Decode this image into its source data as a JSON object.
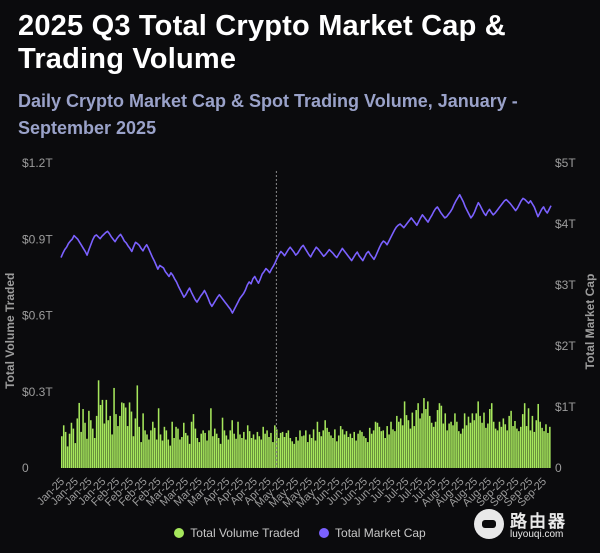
{
  "title": "2025 Q3 Total Crypto Market Cap & Trading Volume",
  "subtitle": "Daily Crypto Market Cap & Spot Trading Volume, January - September 2025",
  "colors": {
    "volume": "#a6e75c",
    "market_cap": "#7b61ff",
    "background": "#0b0b0d",
    "axis_text": "#9c9c9c"
  },
  "chart_data": {
    "type": "bar",
    "title": "2025 Q3 Total Crypto Market Cap & Trading Volume",
    "xlabel": "",
    "ylabel": "Total Volume Traded",
    "y2label": "Total Market Cap",
    "ylim": [
      0,
      1.2
    ],
    "y2lim": [
      0,
      5
    ],
    "y_ticks": [
      "0",
      "$0.3T",
      "$0.6T",
      "$0.9T",
      "$1.2T"
    ],
    "y2_ticks": [
      "0",
      "$1T",
      "$2T",
      "$3T",
      "$4T",
      "$5T"
    ],
    "grid": false,
    "legend_position": "bottom",
    "x_tick_labels": [
      "Jan-25",
      "Jan-25",
      "Jan-25",
      "Jan-25",
      "Feb-25",
      "Feb-25",
      "Feb-25",
      "Feb-25",
      "Mar-25",
      "Mar-25",
      "Mar-25",
      "Mar-25",
      "Apr-25",
      "Apr-25",
      "Apr-25",
      "Apr-25",
      "May-25",
      "May-25",
      "May-25",
      "May-25",
      "Jun-25",
      "Jun-25",
      "Jun-25",
      "Jun-25",
      "Jul-25",
      "Jul-25",
      "Jul-25",
      "Jul-25",
      "Aug-25",
      "Aug-25",
      "Aug-25",
      "Aug-25",
      "Sep-25",
      "Sep-25",
      "Sep-25",
      "Sep-25"
    ],
    "series": [
      {
        "name": "Total Volume Traded",
        "type": "bar",
        "axis": "left",
        "values": [
          0.125,
          0.168,
          0.142,
          0.085,
          0.135,
          0.178,
          0.155,
          0.098,
          0.195,
          0.256,
          0.142,
          0.232,
          0.178,
          0.115,
          0.225,
          0.188,
          0.155,
          0.118,
          0.205,
          0.345,
          0.248,
          0.268,
          0.175,
          0.268,
          0.188,
          0.205,
          0.132,
          0.315,
          0.212,
          0.165,
          0.205,
          0.258,
          0.255,
          0.238,
          0.165,
          0.258,
          0.222,
          0.125,
          0.195,
          0.325,
          0.162,
          0.102,
          0.215,
          0.148,
          0.132,
          0.112,
          0.148,
          0.182,
          0.158,
          0.112,
          0.235,
          0.132,
          0.108,
          0.162,
          0.148,
          0.112,
          0.088,
          0.182,
          0.118,
          0.162,
          0.155,
          0.112,
          0.122,
          0.178,
          0.138,
          0.128,
          0.095,
          0.182,
          0.212,
          0.155,
          0.118,
          0.102,
          0.135,
          0.148,
          0.138,
          0.108,
          0.148,
          0.235,
          0.125,
          0.155,
          0.135,
          0.118,
          0.095,
          0.198,
          0.148,
          0.128,
          0.112,
          0.148,
          0.188,
          0.135,
          0.115,
          0.182,
          0.132,
          0.118,
          0.142,
          0.112,
          0.168,
          0.145,
          0.118,
          0.132,
          0.112,
          0.142,
          0.125,
          0.112,
          0.162,
          0.135,
          0.148,
          0.122,
          0.138,
          0.102,
          0.168,
          0.152,
          0.118,
          0.138,
          0.142,
          0.122,
          0.138,
          0.148,
          0.118,
          0.105,
          0.095,
          0.122,
          0.108,
          0.148,
          0.125,
          0.128,
          0.148,
          0.102,
          0.132,
          0.118,
          0.152,
          0.108,
          0.182,
          0.142,
          0.125,
          0.148,
          0.188,
          0.158,
          0.142,
          0.128,
          0.118,
          0.152,
          0.105,
          0.128,
          0.165,
          0.152,
          0.132,
          0.145,
          0.122,
          0.135,
          0.118,
          0.142,
          0.108,
          0.135,
          0.148,
          0.142,
          0.125,
          0.118,
          0.102,
          0.158,
          0.135,
          0.148,
          0.182,
          0.178,
          0.162,
          0.145,
          0.148,
          0.118,
          0.165,
          0.132,
          0.182,
          0.152,
          0.145,
          0.205,
          0.182,
          0.195,
          0.168,
          0.262,
          0.208,
          0.188,
          0.155,
          0.218,
          0.165,
          0.228,
          0.255,
          0.195,
          0.215,
          0.275,
          0.232,
          0.262,
          0.205,
          0.178,
          0.162,
          0.182,
          0.228,
          0.255,
          0.245,
          0.175,
          0.215,
          0.148,
          0.175,
          0.182,
          0.168,
          0.215,
          0.182,
          0.145,
          0.135,
          0.155,
          0.215,
          0.168,
          0.202,
          0.178,
          0.215,
          0.188,
          0.215,
          0.262,
          0.205,
          0.178,
          0.218,
          0.158,
          0.175,
          0.232,
          0.255,
          0.182,
          0.155,
          0.148,
          0.182,
          0.162,
          0.195,
          0.172,
          0.148,
          0.205,
          0.225,
          0.165,
          0.185,
          0.155,
          0.145,
          0.162,
          0.212,
          0.255,
          0.165,
          0.235,
          0.148,
          0.205,
          0.142,
          0.188,
          0.252,
          0.182,
          0.158,
          0.145,
          0.172,
          0.138,
          0.162
        ]
      },
      {
        "name": "Total Market Cap",
        "type": "line",
        "axis": "right",
        "values": [
          3.45,
          3.52,
          3.58,
          3.62,
          3.68,
          3.72,
          3.75,
          3.81,
          3.78,
          3.75,
          3.7,
          3.65,
          3.6,
          3.55,
          3.49,
          3.58,
          3.66,
          3.74,
          3.8,
          3.82,
          3.79,
          3.76,
          3.8,
          3.83,
          3.86,
          3.88,
          3.84,
          3.79,
          3.75,
          3.71,
          3.76,
          3.8,
          3.83,
          3.78,
          3.72,
          3.69,
          3.64,
          3.6,
          3.55,
          3.63,
          3.7,
          3.68,
          3.65,
          3.6,
          3.56,
          3.62,
          3.66,
          3.6,
          3.53,
          3.46,
          3.4,
          3.33,
          3.26,
          3.32,
          3.3,
          3.28,
          3.22,
          3.18,
          3.14,
          3.2,
          3.16,
          3.1,
          3.05,
          2.98,
          2.92,
          2.86,
          2.8,
          2.84,
          2.9,
          2.95,
          2.88,
          2.82,
          2.76,
          2.72,
          2.77,
          2.82,
          2.86,
          2.91,
          2.85,
          2.78,
          2.7,
          2.65,
          2.7,
          2.75,
          2.8,
          2.84,
          2.8,
          2.76,
          2.72,
          2.68,
          2.64,
          2.6,
          2.54,
          2.6,
          2.66,
          2.72,
          2.78,
          2.82,
          2.86,
          2.92,
          3.0,
          3.05,
          3.02,
          3.1,
          3.14,
          3.08,
          3.03,
          3.1,
          3.18,
          3.22,
          3.27,
          3.24,
          3.2,
          3.26,
          3.31,
          3.37,
          3.44,
          3.5,
          3.55,
          3.52,
          3.48,
          3.53,
          3.58,
          3.62,
          3.58,
          3.54,
          3.49,
          3.52,
          3.57,
          3.62,
          3.65,
          3.6,
          3.55,
          3.5,
          3.46,
          3.52,
          3.57,
          3.62,
          3.59,
          3.55,
          3.51,
          3.47,
          3.5,
          3.54,
          3.58,
          3.55,
          3.52,
          3.48,
          3.45,
          3.5,
          3.55,
          3.6,
          3.56,
          3.52,
          3.48,
          3.44,
          3.4,
          3.45,
          3.5,
          3.54,
          3.48,
          3.44,
          3.4,
          3.46,
          3.52,
          3.55,
          3.5,
          3.46,
          3.42,
          3.48,
          3.55,
          3.62,
          3.68,
          3.72,
          3.7,
          3.66,
          3.72,
          3.78,
          3.84,
          3.9,
          3.95,
          3.98,
          4.0,
          3.97,
          3.94,
          3.98,
          4.02,
          4.06,
          4.1,
          4.06,
          4.02,
          3.98,
          4.04,
          4.1,
          4.15,
          4.11,
          4.07,
          4.03,
          4.09,
          4.14,
          4.2,
          4.25,
          4.28,
          4.23,
          4.18,
          4.14,
          4.1,
          4.12,
          4.16,
          4.2,
          4.25,
          4.32,
          4.38,
          4.43,
          4.48,
          4.42,
          4.36,
          4.28,
          4.22,
          4.16,
          4.1,
          4.14,
          4.2,
          4.28,
          4.35,
          4.3,
          4.24,
          4.18,
          4.14,
          4.2,
          4.24,
          4.19,
          4.15,
          4.18,
          4.22,
          4.26,
          4.3,
          4.34,
          4.38,
          4.4,
          4.37,
          4.34,
          4.3,
          4.26,
          4.22,
          4.26,
          4.32,
          4.38,
          4.42,
          4.4,
          4.37,
          4.34,
          4.38,
          4.33,
          4.28,
          4.2,
          4.12,
          4.18,
          4.24,
          4.28,
          4.22,
          4.18,
          4.24,
          4.3
        ]
      }
    ],
    "annotations": [
      {
        "type": "vertical-dashed-line",
        "at": "May-25 (start of May)"
      }
    ]
  },
  "legend": [
    {
      "label": "Total Volume Traded",
      "color": "#a6e75c"
    },
    {
      "label": "Total Market Cap",
      "color": "#7b61ff"
    }
  ],
  "watermark": {
    "name": "路由器",
    "url": "luyouqi.com"
  }
}
